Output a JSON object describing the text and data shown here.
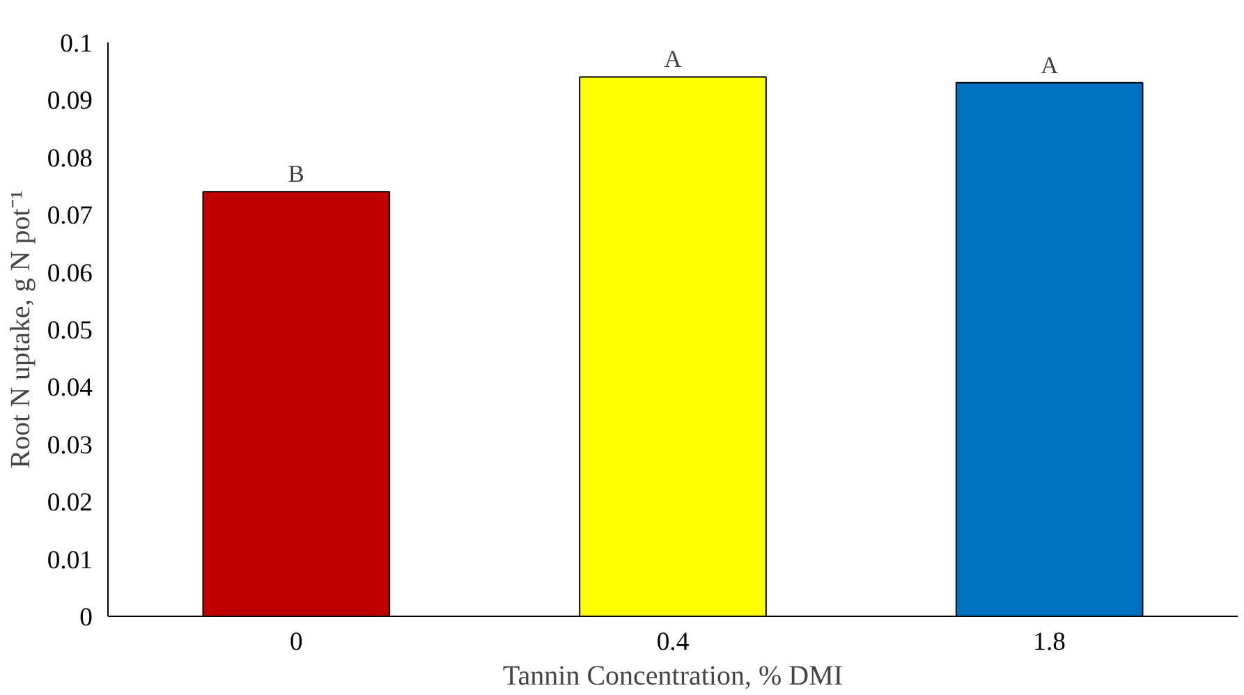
{
  "chart_data": {
    "type": "bar",
    "xlabel": "Tannin Concentration, % DMI",
    "ylabel": "Root N uptake, g N pot⁻¹",
    "categories": [
      "0",
      "0.4",
      "1.8"
    ],
    "values": [
      0.074,
      0.094,
      0.093
    ],
    "colors": [
      "#c00000",
      "#ffff00",
      "#0070c0"
    ],
    "ylim": [
      0,
      0.1
    ],
    "yticks": [
      0,
      0.01,
      0.02,
      0.03,
      0.04,
      0.05,
      0.06,
      0.07,
      0.08,
      0.09,
      0.1
    ],
    "grid": false,
    "annotations": [
      {
        "text": "B",
        "x": "0",
        "y": 0.074
      },
      {
        "text": "A",
        "x": "0.4",
        "y": 0.094
      },
      {
        "text": "A",
        "x": "1.8",
        "y": 0.093
      }
    ]
  }
}
